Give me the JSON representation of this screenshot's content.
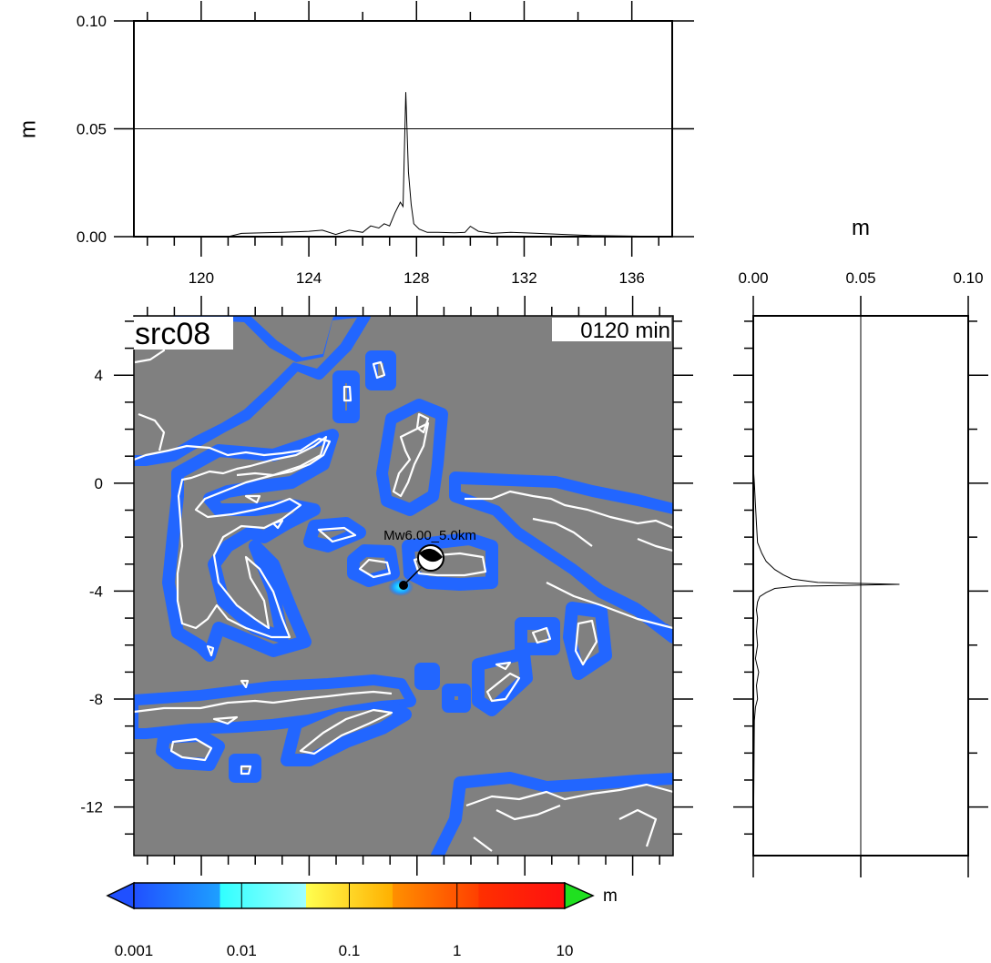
{
  "chart_data": [
    {
      "type": "line",
      "ylabel": "m",
      "xlim": [
        117.5,
        137.5
      ],
      "ylim": [
        0,
        0.1
      ],
      "xticks": [
        120,
        124,
        128,
        132,
        136
      ],
      "yticks": [
        0.0,
        0.05,
        0.1
      ],
      "ytick_labels": [
        "0.00",
        "0.05",
        "0.10"
      ],
      "grid": "horizontal line at 0.05",
      "series": [
        {
          "x": [
            117.5,
            121.0,
            121.5,
            123.0,
            124.0,
            124.5,
            125.0,
            125.5,
            126.0,
            126.3,
            126.6,
            126.8,
            127.0,
            127.2,
            127.4,
            127.5,
            127.6,
            127.7,
            127.8,
            127.9,
            128.1,
            128.4,
            128.8,
            129.4,
            129.8,
            130.0,
            130.3,
            130.8,
            131.5,
            132.5,
            133.5,
            134.5,
            137.5
          ],
          "y": [
            0.0,
            0.0,
            0.0015,
            0.002,
            0.0025,
            0.003,
            0.001,
            0.003,
            0.002,
            0.005,
            0.004,
            0.006,
            0.005,
            0.011,
            0.016,
            0.014,
            0.067,
            0.03,
            0.015,
            0.006,
            0.0035,
            0.002,
            0.002,
            0.0018,
            0.002,
            0.0048,
            0.0025,
            0.0015,
            0.002,
            0.0015,
            0.001,
            0.0005,
            0.0
          ]
        }
      ]
    },
    {
      "type": "line",
      "xlabel": "m",
      "xlim": [
        0,
        0.1
      ],
      "ylim": [
        -13.8,
        6.2
      ],
      "xticks": [
        0.0,
        0.05,
        0.1
      ],
      "xtick_labels": [
        "0.00",
        "0.05",
        "0.10"
      ],
      "grid": "vertical line at 0.05",
      "series": [
        {
          "y": [
            6.2,
            0.6,
            0.0,
            -0.8,
            -1.5,
            -2.2,
            -2.6,
            -2.9,
            -3.2,
            -3.4,
            -3.55,
            -3.68,
            -3.75,
            -3.82,
            -3.9,
            -4.05,
            -4.2,
            -4.4,
            -4.7,
            -5.0,
            -5.5,
            -6.0,
            -6.5,
            -7.0,
            -7.5,
            -8.0,
            -8.3,
            -8.8,
            -13.8
          ],
          "x": [
            0.0,
            0.0,
            0.0005,
            0.001,
            0.0015,
            0.002,
            0.004,
            0.006,
            0.01,
            0.014,
            0.018,
            0.03,
            0.068,
            0.02,
            0.01,
            0.006,
            0.003,
            0.002,
            0.0015,
            0.002,
            0.0015,
            0.002,
            0.001,
            0.0025,
            0.0015,
            0.002,
            0.001,
            0.0005,
            0.0
          ]
        }
      ]
    },
    {
      "type": "heatmap",
      "title": "src08",
      "time_label": "0120 min",
      "xlim": [
        117.5,
        137.5
      ],
      "ylim": [
        -13.8,
        6.2
      ],
      "yticks": [
        4,
        0,
        -4,
        -8,
        -12
      ],
      "event": {
        "label": "Mw6.00_5.0km",
        "epicenter": [
          127.6,
          -3.8
        ],
        "symbol_offset": [
          128.6,
          -2.8
        ]
      },
      "colorbar": {
        "unit": "m",
        "tick_labels": [
          "0.001",
          "0.01",
          "0.1",
          "1",
          "10"
        ],
        "colors": [
          "#2060ff",
          "#30ffff",
          "#ffff40",
          "#ff8000",
          "#ff1010",
          "#20e020"
        ]
      }
    }
  ],
  "colors": {
    "sea": "#808080",
    "wave_low": "#2266ff",
    "coastline": "#ffffff"
  }
}
